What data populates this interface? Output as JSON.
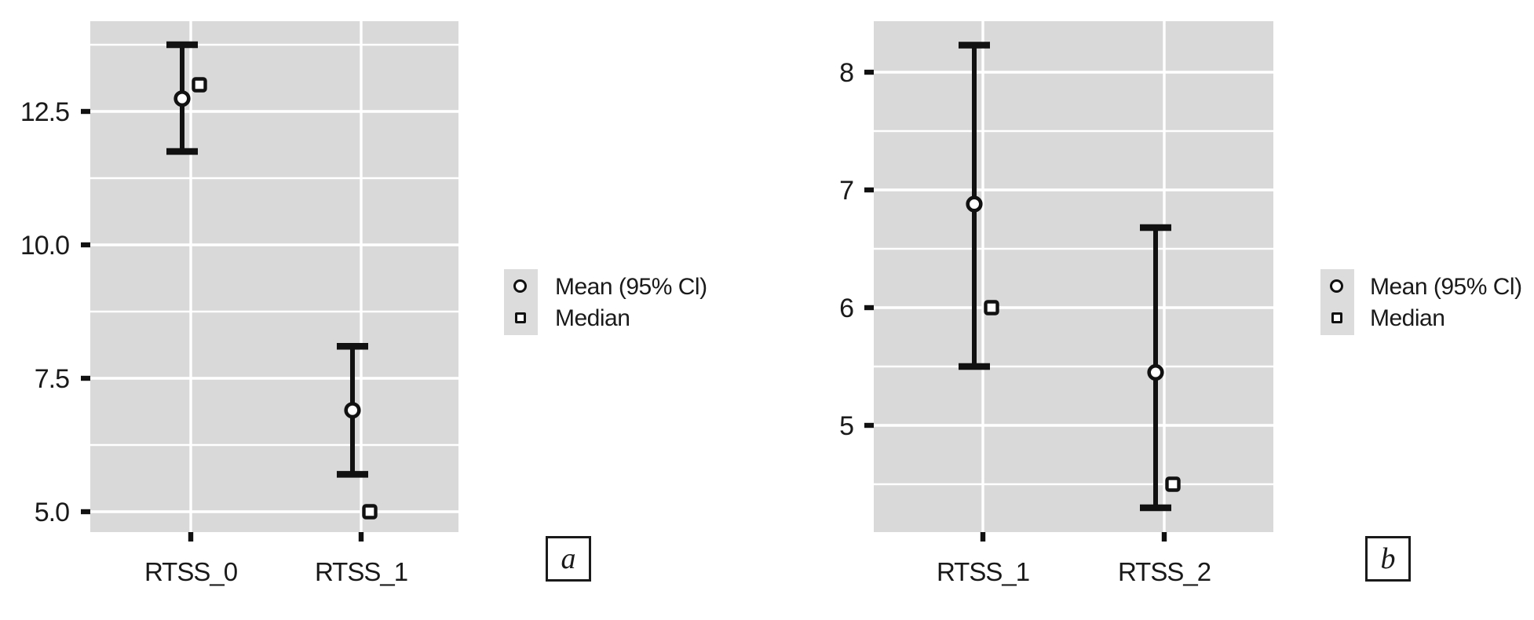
{
  "style": {
    "page_bg": "#ffffff",
    "panel_bg": "#d9d9d9",
    "grid_color": "#ffffff",
    "ink": "#111111",
    "text_color": "#1a1a1a",
    "legend_key_bg": "#dcdcdc",
    "marker_fill": "#ffffff"
  },
  "legend": {
    "items": [
      {
        "marker": "circle-icon",
        "label": "Mean (95% Cl)"
      },
      {
        "marker": "square-icon",
        "label": "Median"
      }
    ],
    "position": "right"
  },
  "chart_data": [
    {
      "id": "a",
      "type": "scatter",
      "panel_label": "a",
      "title": "",
      "xlabel": "",
      "ylabel": "",
      "categories": [
        "RTSS_0",
        "RTSS_1"
      ],
      "y_ticks": [
        5.0,
        7.5,
        10.0,
        12.5
      ],
      "y_tick_labels": [
        "5.0",
        "7.5",
        "10.0",
        "12.5"
      ],
      "y_minor_ticks": [
        6.25,
        8.75,
        11.25,
        13.75
      ],
      "ylim": [
        4.6,
        14.2
      ],
      "grid": true,
      "legend_entries": [
        "Mean (95% Cl)",
        "Median"
      ],
      "series": [
        {
          "name": "Mean (95% Cl)",
          "marker": "circle",
          "values": [
            12.74,
            6.9
          ],
          "ci_low": [
            11.75,
            5.7
          ],
          "ci_high": [
            13.75,
            8.1
          ]
        },
        {
          "name": "Median",
          "marker": "square",
          "values": [
            13.0,
            5.0
          ]
        }
      ]
    },
    {
      "id": "b",
      "type": "scatter",
      "panel_label": "b",
      "title": "",
      "xlabel": "",
      "ylabel": "",
      "categories": [
        "RTSS_1",
        "RTSS_2"
      ],
      "y_ticks": [
        5,
        6,
        7,
        8
      ],
      "y_tick_labels": [
        "5",
        "6",
        "7",
        "8"
      ],
      "y_minor_ticks": [
        4.5,
        5.5,
        6.5,
        7.5
      ],
      "ylim": [
        4.1,
        8.4
      ],
      "grid": true,
      "legend_entries": [
        "Mean (95% Cl)",
        "Median"
      ],
      "series": [
        {
          "name": "Mean (95% Cl)",
          "marker": "circle",
          "values": [
            6.88,
            5.45
          ],
          "ci_low": [
            5.5,
            4.3
          ],
          "ci_high": [
            8.23,
            6.68
          ]
        },
        {
          "name": "Median",
          "marker": "square",
          "values": [
            6.0,
            4.5
          ]
        }
      ]
    }
  ]
}
